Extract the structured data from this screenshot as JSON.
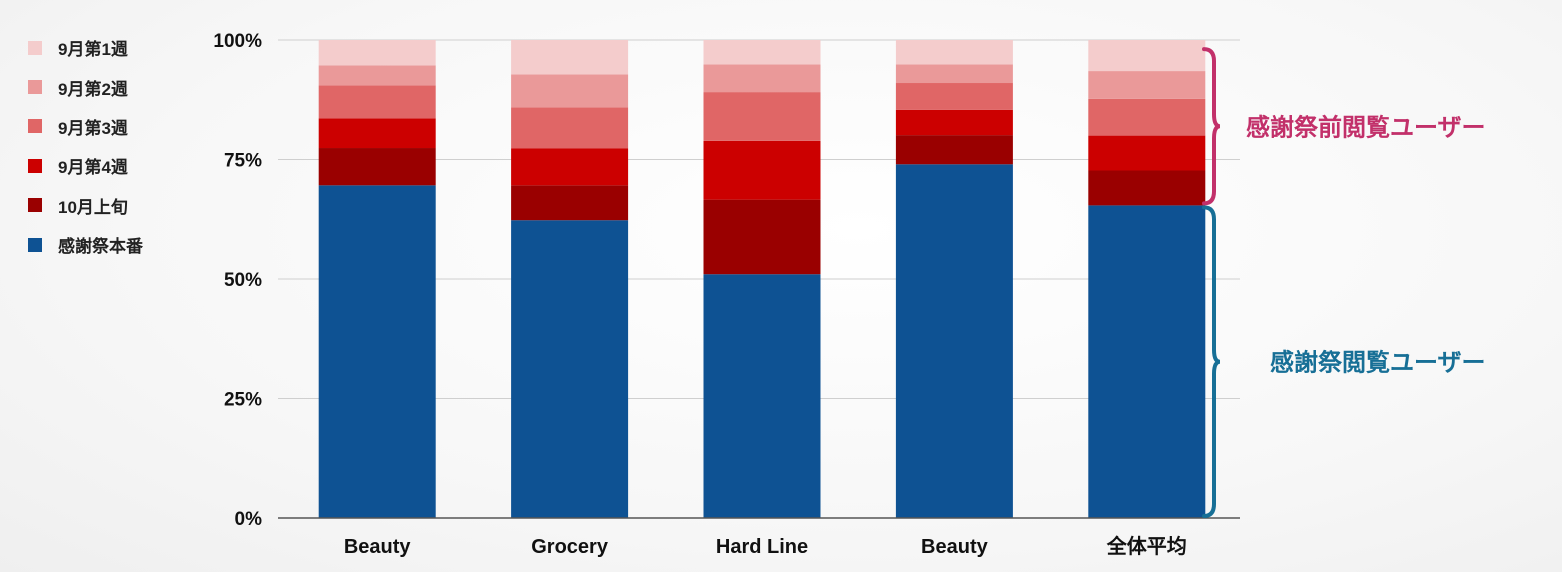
{
  "chart_data": {
    "type": "bar",
    "stacked": true,
    "categories": [
      "Beauty",
      "Grocery",
      "Hard Line",
      "Beauty",
      "全体平均"
    ],
    "ylim": [
      0,
      100
    ],
    "yticks": [
      "0%",
      "25%",
      "50%",
      "75%",
      "100%"
    ],
    "grid": true,
    "legend_position": "top-left",
    "series": [
      {
        "name": "感謝祭本番",
        "color": "#0e5293",
        "values": [
          69.6,
          62.3,
          51.0,
          74.0,
          65.4
        ]
      },
      {
        "name": "10月上旬",
        "color": "#9a0000",
        "values": [
          7.8,
          7.3,
          15.6,
          6.1,
          7.3
        ]
      },
      {
        "name": "9月第4週",
        "color": "#cc0000",
        "values": [
          6.2,
          7.7,
          12.3,
          5.3,
          7.3
        ]
      },
      {
        "name": "9月第3週",
        "color": "#e06666",
        "values": [
          6.9,
          8.6,
          10.2,
          5.6,
          7.7
        ]
      },
      {
        "name": "9月第2週",
        "color": "#ea9999",
        "values": [
          4.2,
          6.9,
          5.8,
          3.9,
          5.8
        ]
      },
      {
        "name": "9月第1週",
        "color": "#f4cccc",
        "values": [
          5.3,
          7.2,
          5.1,
          5.1,
          6.5
        ]
      }
    ],
    "annotations": [
      {
        "text": "感謝祭前閲覧ユーザー",
        "color": "#c2306a",
        "range": [
          65.4,
          98.5
        ]
      },
      {
        "text": "感謝祭閲覧ユーザー",
        "color": "#176f96",
        "range": [
          0,
          65.4
        ]
      }
    ]
  }
}
